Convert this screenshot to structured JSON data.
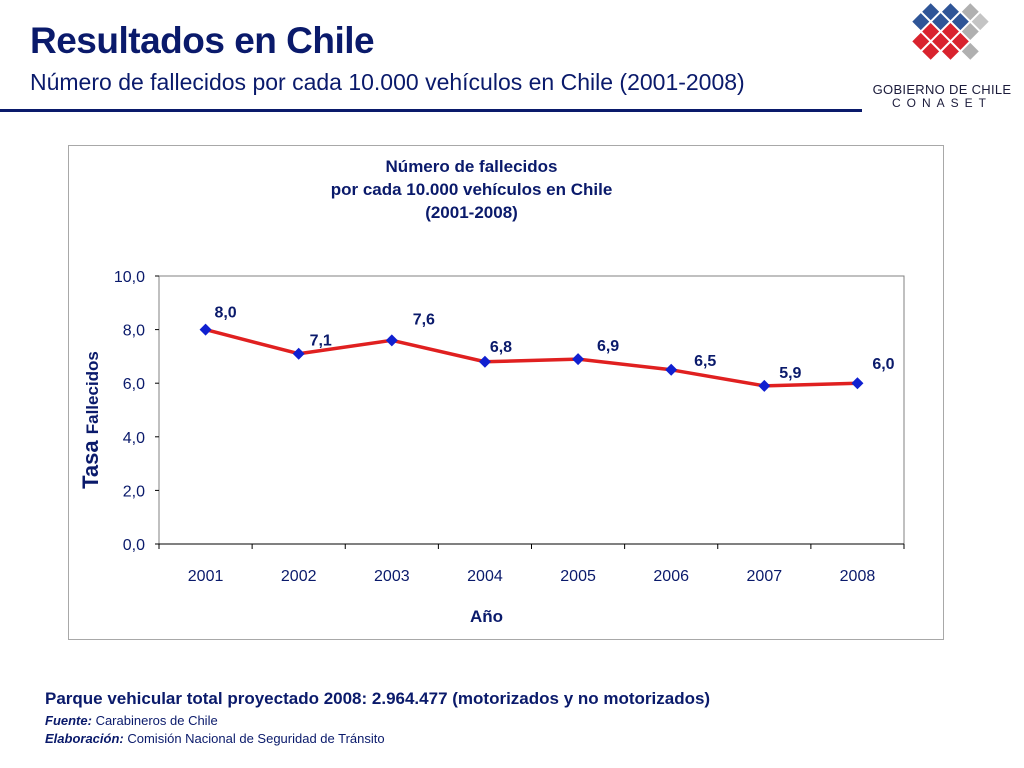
{
  "header": {
    "title": "Resultados en Chile",
    "subtitle": "Número de fallecidos por cada 10.000 vehículos en Chile (2001-2008)"
  },
  "logo": {
    "line1": "GOBIERNO DE CHILE",
    "line2": "CONASET",
    "colors": [
      "#2f5597",
      "#d9232e",
      "#b0b0b0"
    ]
  },
  "chart_data": {
    "type": "line",
    "title": [
      "Número de fallecidos",
      "por cada 10.000 vehículos en Chile",
      "(2001-2008)"
    ],
    "xlabel": "Año",
    "ylabel_part1": "Tasa",
    "ylabel_part2": "Fallecidos",
    "categories": [
      "2001",
      "2002",
      "2003",
      "2004",
      "2005",
      "2006",
      "2007",
      "2008"
    ],
    "series": [
      {
        "values": [
          8.0,
          7.1,
          7.6,
          6.8,
          6.9,
          6.5,
          5.9,
          6.0
        ],
        "labels": [
          "8,0",
          "7,1",
          "7,6",
          "6,8",
          "6,9",
          "6,5",
          "5,9",
          "6,0"
        ],
        "line_color": "#e02020",
        "marker_color": "#1020d0"
      }
    ],
    "ylim": [
      0,
      10
    ],
    "yticks": [
      "0,0",
      "2,0",
      "4,0",
      "6,0",
      "8,0",
      "10,0"
    ],
    "grid": false,
    "legend": "none",
    "plot_background": "#ffffff",
    "text_color": "#0a1a6b"
  },
  "footer": {
    "main": "Parque vehicular total proyectado 2008:  2.964.477 (motorizados y no motorizados)",
    "source_label": "Fuente:",
    "source_text": " Carabineros de Chile",
    "elab_label": "Elaboración:",
    "elab_text": " Comisión Nacional de Seguridad de Tránsito"
  }
}
